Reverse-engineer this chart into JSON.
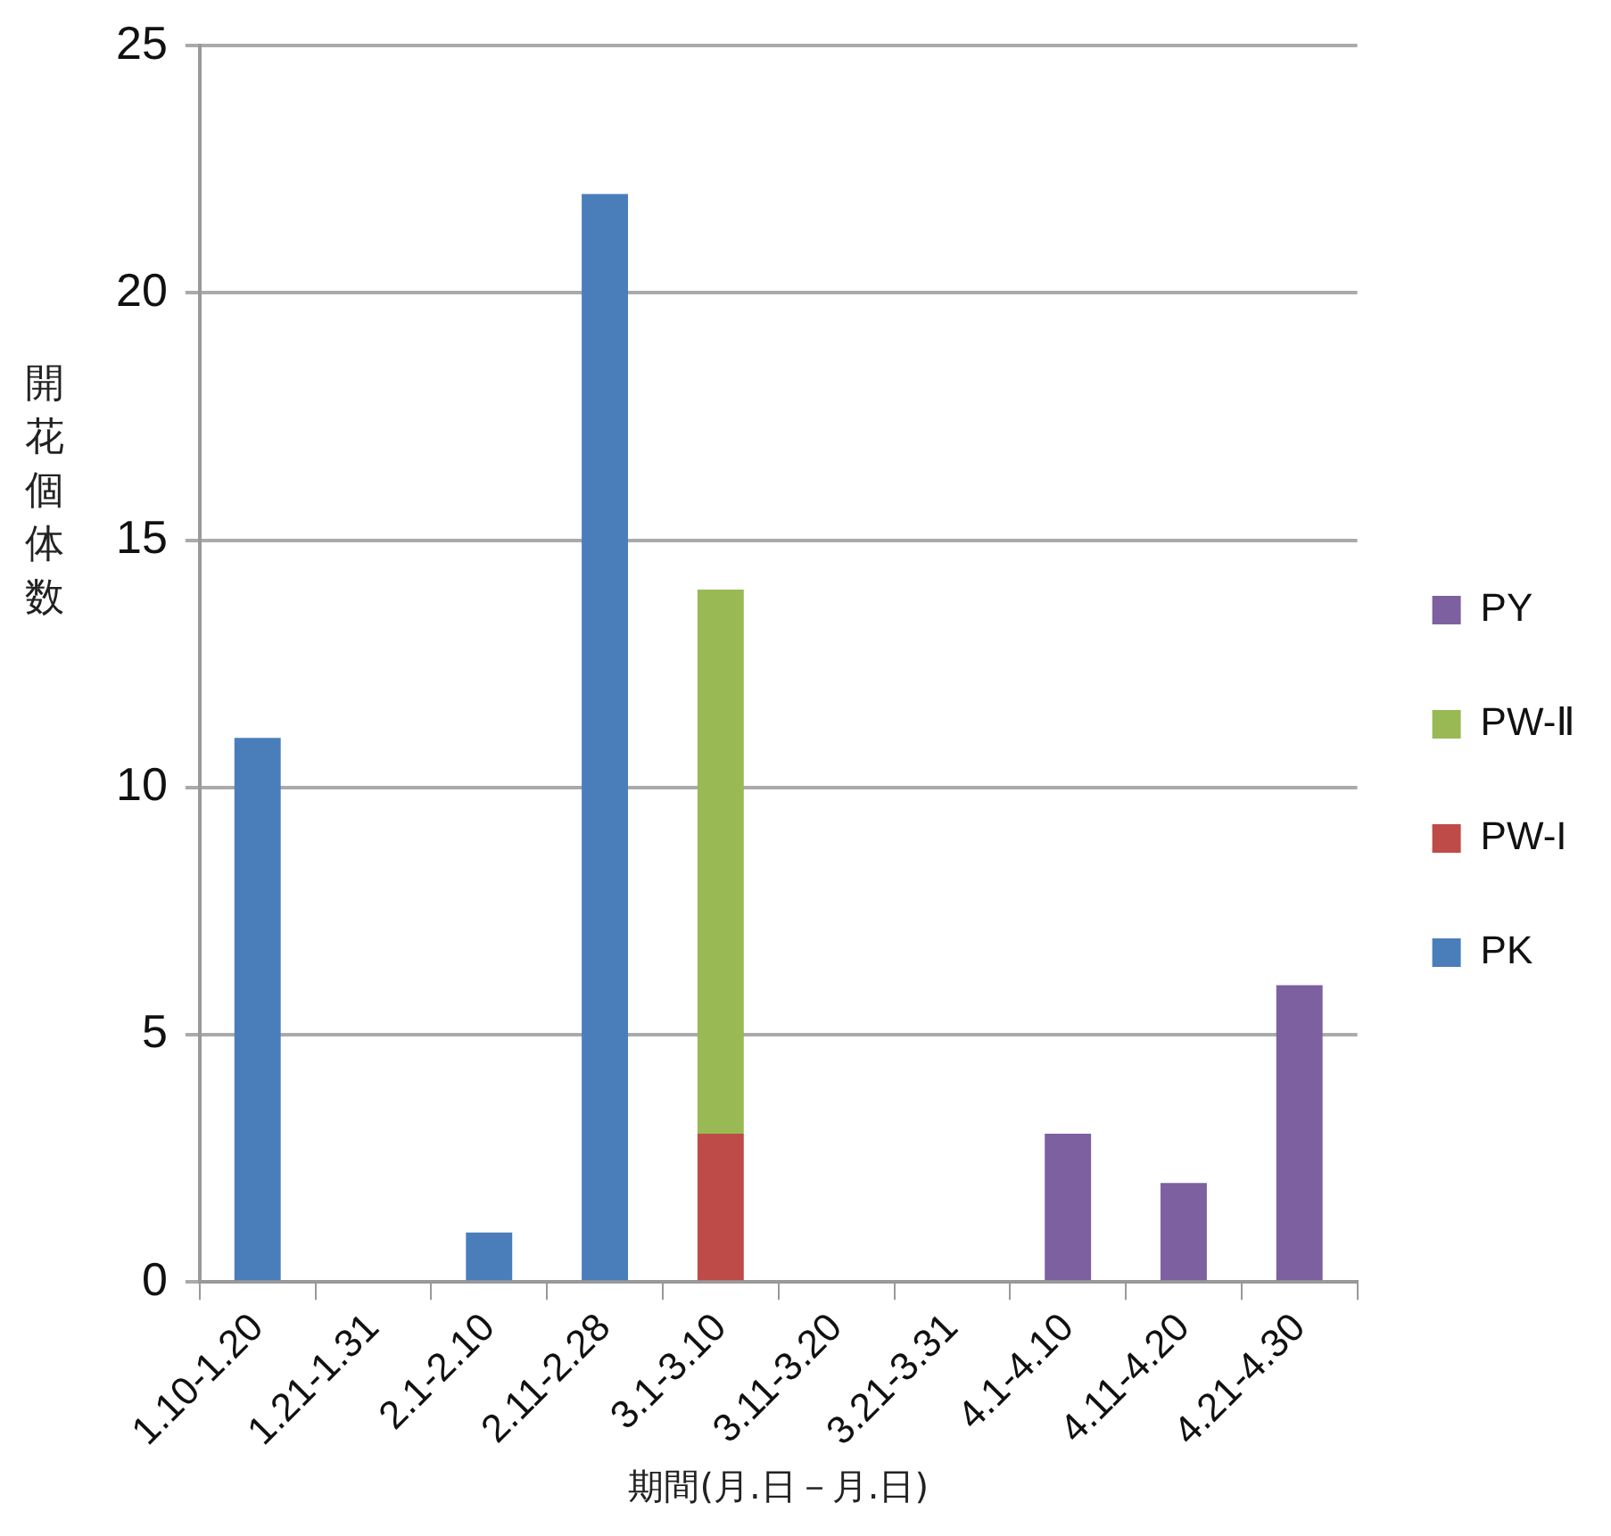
{
  "chart_data": {
    "type": "bar",
    "stacked": true,
    "xlabel": "期間(月.日－月.日)",
    "ylabel": "開花個体数",
    "categories": [
      "1.10-1.20",
      "1.21-1.31",
      "2.1-2.10",
      "2.11-2.28",
      "3.1-3.10",
      "3.11-3.20",
      "3.21-3.31",
      "4.1-4.10",
      "4.11-4.20",
      "4.21-4.30"
    ],
    "series": [
      {
        "name": "PK",
        "color": "#4a7ebb",
        "values": [
          11,
          0,
          1,
          22,
          null,
          null,
          null,
          null,
          null,
          null
        ]
      },
      {
        "name": "PW-I",
        "color": "#be4b48",
        "values": [
          null,
          null,
          null,
          null,
          3,
          null,
          null,
          null,
          null,
          null
        ]
      },
      {
        "name": "PW-Ⅱ",
        "color": "#98b954",
        "values": [
          null,
          null,
          null,
          null,
          11,
          null,
          null,
          null,
          null,
          null
        ]
      },
      {
        "name": "PY",
        "color": "#7d60a0",
        "values": [
          null,
          null,
          null,
          null,
          null,
          null,
          null,
          3,
          2,
          6
        ]
      }
    ],
    "ylim": [
      0,
      25
    ],
    "yticks": [
      0,
      5,
      10,
      15,
      20,
      25
    ],
    "grid": "y",
    "legend": "right"
  }
}
